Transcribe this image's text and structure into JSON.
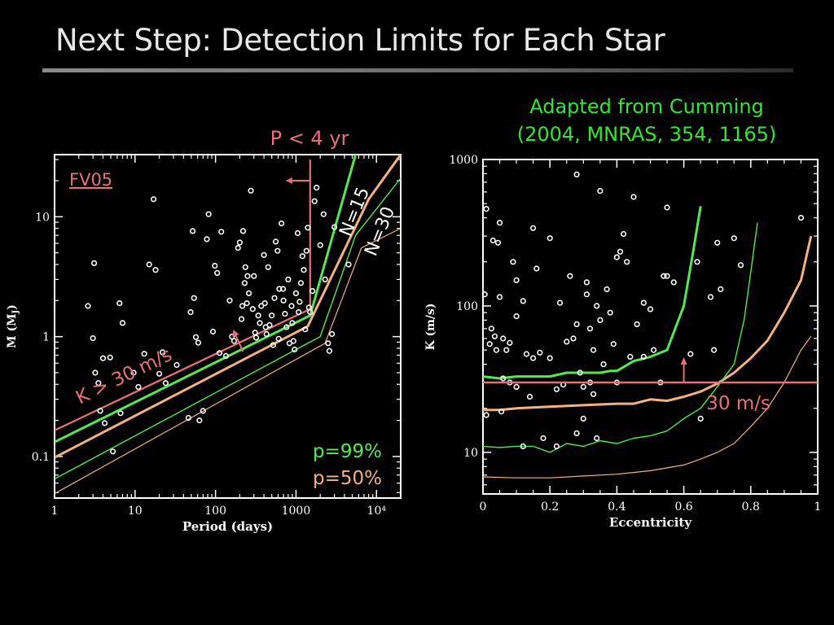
{
  "slide": {
    "title": "Next Step: Detection Limits for Each Star",
    "source_note": [
      "Adapted from Cumming",
      "(2004, MNRAS, 354, 1165)"
    ]
  },
  "colors": {
    "background": "#000000",
    "axes": "#ffffff",
    "green": "#55e855",
    "orange": "#f4b183",
    "pink": "#e8707c"
  },
  "chart_data": [
    {
      "type": "scatter",
      "xlabel": "Period (days)",
      "ylabel": "M (M",
      "ylabel_sub": "J",
      "ylabel_end": ")",
      "xscale": "log",
      "yscale": "log",
      "xlim": [
        1,
        20000
      ],
      "ylim": [
        0.045,
        33
      ],
      "x_ticks": [
        {
          "v": 1,
          "label": "1"
        },
        {
          "v": 10,
          "label": "10"
        },
        {
          "v": 100,
          "label": "100"
        },
        {
          "v": 1000,
          "label": "1000"
        },
        {
          "v": 10000,
          "label": "10⁴"
        }
      ],
      "y_ticks": [
        {
          "v": 0.1,
          "label": "0.1"
        },
        {
          "v": 1,
          "label": "1"
        },
        {
          "v": 10,
          "label": "10"
        }
      ],
      "annotations": {
        "fv05": "FV05",
        "period_cut": "P < 4 yr",
        "k_cut": "K > 30 m/s",
        "n15": "N=15",
        "n30": "N=30",
        "p99": "p=99%",
        "p50": "p=50%"
      },
      "curves": [
        {
          "color": "pink",
          "width": 2.2,
          "points": [
            [
              1,
              0.165
            ],
            [
              1500,
              1.7
            ],
            [
              1500,
              30
            ]
          ]
        },
        {
          "color": "green",
          "width": 3,
          "points": [
            [
              1,
              0.132
            ],
            [
              1500,
              1.5
            ],
            [
              5500,
              33
            ]
          ]
        },
        {
          "color": "orange",
          "width": 3,
          "points": [
            [
              1,
              0.098
            ],
            [
              1400,
              1.22
            ],
            [
              8000,
              14
            ],
            [
              20000,
              33
            ]
          ]
        },
        {
          "color": "green",
          "width": 1.4,
          "points": [
            [
              1,
              0.065
            ],
            [
              2000,
              1.0
            ],
            [
              5500,
              7
            ],
            [
              20000,
              21
            ]
          ]
        },
        {
          "color": "orange",
          "width": 1.2,
          "points": [
            [
              1,
              0.049
            ],
            [
              2300,
              0.88
            ],
            [
              6500,
              5.5
            ],
            [
              20000,
              8
            ]
          ]
        }
      ],
      "points": [
        [
          2.6,
          1.8
        ],
        [
          3.1,
          4.1
        ],
        [
          3.0,
          0.97
        ],
        [
          3.2,
          0.5
        ],
        [
          3.5,
          0.41
        ],
        [
          4.0,
          0.66
        ],
        [
          3.7,
          0.24
        ],
        [
          4.2,
          0.19
        ],
        [
          4.9,
          0.67
        ],
        [
          5.3,
          0.11
        ],
        [
          6.4,
          1.9
        ],
        [
          7.0,
          1.3
        ],
        [
          6.6,
          0.23
        ],
        [
          9.6,
          0.5
        ],
        [
          11.0,
          0.38
        ],
        [
          13,
          0.72
        ],
        [
          15,
          4.0
        ],
        [
          17,
          14
        ],
        [
          18,
          3.6
        ],
        [
          20,
          0.49
        ],
        [
          22,
          0.74
        ],
        [
          24,
          0.41
        ],
        [
          33,
          0.58
        ],
        [
          46,
          0.21
        ],
        [
          49,
          1.6
        ],
        [
          52,
          7.6
        ],
        [
          54,
          2.1
        ],
        [
          57,
          0.99
        ],
        [
          61,
          0.89
        ],
        [
          63,
          0.2
        ],
        [
          70,
          0.24
        ],
        [
          78,
          6.5
        ],
        [
          82,
          10.5
        ],
        [
          93,
          1.1
        ],
        [
          98,
          3.9
        ],
        [
          105,
          3.4
        ],
        [
          112,
          0.73
        ],
        [
          118,
          7.5
        ],
        [
          135,
          0.69
        ],
        [
          150,
          2.0
        ],
        [
          160,
          1.0
        ],
        [
          170,
          0.92
        ],
        [
          190,
          5.5
        ],
        [
          200,
          6.1
        ],
        [
          210,
          1.4
        ],
        [
          215,
          1.8
        ],
        [
          220,
          7.6
        ],
        [
          230,
          2.8
        ],
        [
          235,
          3.8
        ],
        [
          245,
          1.9
        ],
        [
          250,
          3.2
        ],
        [
          260,
          2.3
        ],
        [
          275,
          16.5
        ],
        [
          290,
          1.7
        ],
        [
          300,
          3.2
        ],
        [
          310,
          1.08
        ],
        [
          320,
          0.98
        ],
        [
          340,
          1.5
        ],
        [
          355,
          1.3
        ],
        [
          370,
          1.8
        ],
        [
          400,
          4.8
        ],
        [
          410,
          1.9
        ],
        [
          420,
          1.2
        ],
        [
          430,
          1.05
        ],
        [
          450,
          3.8
        ],
        [
          470,
          1.25
        ],
        [
          500,
          1.5
        ],
        [
          520,
          0.85
        ],
        [
          540,
          2.1
        ],
        [
          560,
          6.2
        ],
        [
          590,
          5.2
        ],
        [
          610,
          0.96
        ],
        [
          620,
          2.5
        ],
        [
          660,
          8.8
        ],
        [
          690,
          2.5
        ],
        [
          700,
          2.0
        ],
        [
          730,
          1.55
        ],
        [
          760,
          1.2
        ],
        [
          800,
          3.0
        ],
        [
          830,
          0.88
        ],
        [
          880,
          1.8
        ],
        [
          900,
          1.3
        ],
        [
          930,
          0.92
        ],
        [
          960,
          0.78
        ],
        [
          1000,
          2.3
        ],
        [
          1050,
          7.3
        ],
        [
          1080,
          1.6
        ],
        [
          1110,
          1.95
        ],
        [
          1150,
          2.8
        ],
        [
          1200,
          4.7
        ],
        [
          1250,
          3.6
        ],
        [
          1300,
          1.15
        ],
        [
          1350,
          5.2
        ],
        [
          1400,
          8.1
        ],
        [
          1450,
          1.75
        ],
        [
          1500,
          1.6
        ],
        [
          1600,
          2.4
        ],
        [
          1700,
          13.5
        ],
        [
          1800,
          17.5
        ],
        [
          2000,
          5.8
        ],
        [
          2200,
          10.5
        ],
        [
          2300,
          3.0
        ],
        [
          2500,
          0.88
        ],
        [
          2600,
          0.76
        ],
        [
          2800,
          1.05
        ],
        [
          3000,
          8.2
        ],
        [
          4500,
          4.0
        ]
      ]
    },
    {
      "type": "scatter",
      "xlabel": "Eccentricity",
      "ylabel": "K (m/s)",
      "xscale": "linear",
      "yscale": "log",
      "xlim": [
        0,
        1
      ],
      "ylim": [
        5.2,
        1000
      ],
      "x_ticks": [
        {
          "v": 0,
          "label": "0"
        },
        {
          "v": 0.2,
          "label": "0.2"
        },
        {
          "v": 0.4,
          "label": "0.4"
        },
        {
          "v": 0.6,
          "label": "0.6"
        },
        {
          "v": 0.8,
          "label": "0.8"
        },
        {
          "v": 1,
          "label": "1"
        }
      ],
      "y_ticks": [
        {
          "v": 10,
          "label": "10"
        },
        {
          "v": 100,
          "label": "100"
        },
        {
          "v": 1000,
          "label": "1000"
        }
      ],
      "annotations": {
        "k_line": "30 m/s"
      },
      "threshold": 30,
      "curves": [
        {
          "color": "green",
          "width": 3,
          "points": [
            [
              0,
              33
            ],
            [
              0.05,
              32
            ],
            [
              0.1,
              33
            ],
            [
              0.15,
              33
            ],
            [
              0.2,
              33
            ],
            [
              0.25,
              35
            ],
            [
              0.3,
              35
            ],
            [
              0.35,
              35
            ],
            [
              0.38,
              36
            ],
            [
              0.4,
              36
            ],
            [
              0.45,
              42
            ],
            [
              0.5,
              45
            ],
            [
              0.55,
              50
            ],
            [
              0.6,
              100
            ],
            [
              0.63,
              250
            ],
            [
              0.65,
              480
            ]
          ]
        },
        {
          "color": "orange",
          "width": 3,
          "points": [
            [
              0,
              19.5
            ],
            [
              0.05,
              19.5
            ],
            [
              0.1,
              20
            ],
            [
              0.2,
              20.5
            ],
            [
              0.3,
              21
            ],
            [
              0.4,
              21.5
            ],
            [
              0.45,
              21.5
            ],
            [
              0.5,
              23
            ],
            [
              0.55,
              22.5
            ],
            [
              0.6,
              24
            ],
            [
              0.65,
              26
            ],
            [
              0.7,
              29.5
            ],
            [
              0.75,
              35
            ],
            [
              0.8,
              44
            ],
            [
              0.85,
              58
            ],
            [
              0.9,
              90
            ],
            [
              0.95,
              150
            ],
            [
              0.98,
              300
            ]
          ]
        },
        {
          "color": "green",
          "width": 1.4,
          "points": [
            [
              0,
              11
            ],
            [
              0.05,
              10.8
            ],
            [
              0.1,
              11
            ],
            [
              0.15,
              11
            ],
            [
              0.2,
              10
            ],
            [
              0.25,
              11.5
            ],
            [
              0.3,
              11
            ],
            [
              0.35,
              12
            ],
            [
              0.4,
              11.5
            ],
            [
              0.45,
              12.5
            ],
            [
              0.5,
              13
            ],
            [
              0.55,
              14
            ],
            [
              0.6,
              17
            ],
            [
              0.65,
              20
            ],
            [
              0.7,
              28
            ],
            [
              0.75,
              40
            ],
            [
              0.78,
              80
            ],
            [
              0.8,
              170
            ],
            [
              0.82,
              370
            ]
          ]
        },
        {
          "color": "orange",
          "width": 1.2,
          "points": [
            [
              0,
              6.8
            ],
            [
              0.1,
              6.7
            ],
            [
              0.2,
              6.7
            ],
            [
              0.3,
              6.9
            ],
            [
              0.4,
              7.1
            ],
            [
              0.5,
              7.5
            ],
            [
              0.6,
              8.2
            ],
            [
              0.65,
              9.0
            ],
            [
              0.7,
              10
            ],
            [
              0.75,
              11.5
            ],
            [
              0.8,
              15
            ],
            [
              0.85,
              20
            ],
            [
              0.9,
              30
            ],
            [
              0.95,
              50
            ],
            [
              0.98,
              62
            ]
          ]
        }
      ],
      "points": [
        [
          0.005,
          120
        ],
        [
          0.01,
          18
        ],
        [
          0.01,
          460
        ],
        [
          0.02,
          55
        ],
        [
          0.025,
          70
        ],
        [
          0.03,
          280
        ],
        [
          0.035,
          62
        ],
        [
          0.04,
          50
        ],
        [
          0.045,
          270
        ],
        [
          0.05,
          370
        ],
        [
          0.05,
          115
        ],
        [
          0.055,
          19
        ],
        [
          0.06,
          60
        ],
        [
          0.06,
          32
        ],
        [
          0.07,
          50
        ],
        [
          0.08,
          30
        ],
        [
          0.08,
          56
        ],
        [
          0.09,
          200
        ],
        [
          0.1,
          28
        ],
        [
          0.1,
          150
        ],
        [
          0.1,
          85
        ],
        [
          0.12,
          108
        ],
        [
          0.12,
          11
        ],
        [
          0.13,
          47
        ],
        [
          0.14,
          24
        ],
        [
          0.15,
          44
        ],
        [
          0.15,
          340
        ],
        [
          0.16,
          180
        ],
        [
          0.17,
          48
        ],
        [
          0.18,
          12.5
        ],
        [
          0.2,
          290
        ],
        [
          0.2,
          44
        ],
        [
          0.22,
          27
        ],
        [
          0.22,
          11
        ],
        [
          0.23,
          105
        ],
        [
          0.24,
          29
        ],
        [
          0.25,
          57
        ],
        [
          0.26,
          160
        ],
        [
          0.27,
          60
        ],
        [
          0.28,
          75
        ],
        [
          0.28,
          13.5
        ],
        [
          0.29,
          35
        ],
        [
          0.3,
          28
        ],
        [
          0.3,
          17
        ],
        [
          0.31,
          120
        ],
        [
          0.31,
          145
        ],
        [
          0.32,
          70
        ],
        [
          0.32,
          30
        ],
        [
          0.33,
          50
        ],
        [
          0.33,
          25
        ],
        [
          0.34,
          100
        ],
        [
          0.34,
          12.5
        ],
        [
          0.35,
          610
        ],
        [
          0.35,
          80
        ],
        [
          0.36,
          40
        ],
        [
          0.37,
          130
        ],
        [
          0.38,
          90
        ],
        [
          0.39,
          55
        ],
        [
          0.4,
          30
        ],
        [
          0.4,
          215
        ],
        [
          0.41,
          235
        ],
        [
          0.42,
          310
        ],
        [
          0.43,
          200
        ],
        [
          0.44,
          45
        ],
        [
          0.46,
          75
        ],
        [
          0.48,
          105
        ],
        [
          0.48,
          45
        ],
        [
          0.5,
          95
        ],
        [
          0.51,
          50
        ],
        [
          0.53,
          30
        ],
        [
          0.54,
          160
        ],
        [
          0.55,
          160
        ],
        [
          0.55,
          470
        ],
        [
          0.57,
          145
        ],
        [
          0.62,
          47
        ],
        [
          0.64,
          200
        ],
        [
          0.65,
          17
        ],
        [
          0.68,
          115
        ],
        [
          0.69,
          50
        ],
        [
          0.7,
          270
        ],
        [
          0.71,
          130
        ],
        [
          0.75,
          290
        ],
        [
          0.77,
          190
        ],
        [
          0.95,
          400
        ],
        [
          0.28,
          790
        ],
        [
          0.45,
          555
        ]
      ]
    }
  ]
}
